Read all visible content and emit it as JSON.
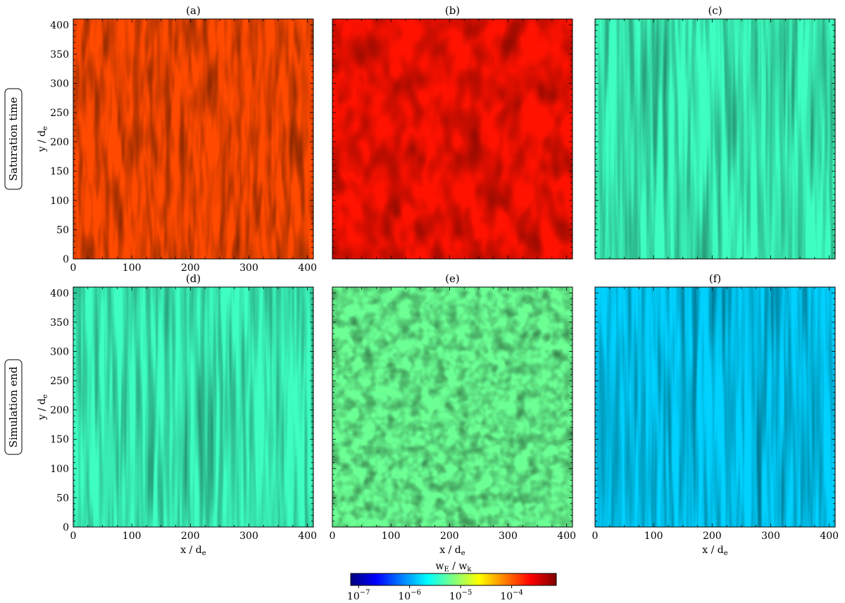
{
  "figure": {
    "row_labels": [
      "Saturation time",
      "Simulation end"
    ],
    "colorbar": {
      "label_main": "w",
      "label_sub1": "E",
      "label_sep": " / w",
      "label_sub2": "k",
      "scale": "log",
      "range": [
        7e-08,
        0.00075
      ],
      "colormap": "jet",
      "colormap_stops": [
        "#00007f",
        "#0000ff",
        "#007fff",
        "#00ffff",
        "#7fff7f",
        "#ffff00",
        "#ff7f00",
        "#ff0000",
        "#7f0000"
      ],
      "ticks": [
        {
          "base": "10",
          "exp": "−7",
          "value": 1e-07
        },
        {
          "base": "10",
          "exp": "−6",
          "value": 1e-06
        },
        {
          "base": "10",
          "exp": "−5",
          "value": 1e-05
        },
        {
          "base": "10",
          "exp": "−4",
          "value": 0.0001
        }
      ]
    }
  },
  "chart_data": [
    {
      "type": "heatmap",
      "title": "(a)",
      "row": "Saturation time",
      "xlabel": "",
      "ylabel": "y / d",
      "ylabel_sub": "e",
      "xlim": [
        0,
        410
      ],
      "ylim": [
        0,
        410
      ],
      "xticks": [
        "0",
        "100",
        "200",
        "300",
        "400"
      ],
      "yticks": [
        "0",
        "50",
        "100",
        "150",
        "200",
        "250",
        "300",
        "350",
        "400"
      ],
      "dominant_color": "#ff8c00",
      "typical_level": 0.00012
    },
    {
      "type": "heatmap",
      "title": "(b)",
      "row": "Saturation time",
      "xlabel": "",
      "ylabel": "",
      "xlim": [
        0,
        410
      ],
      "ylim": [
        0,
        410
      ],
      "xticks": [],
      "yticks": [],
      "dominant_color": "#ff3000",
      "typical_level": 0.0002
    },
    {
      "type": "heatmap",
      "title": "(c)",
      "row": "Saturation time",
      "xlabel": "",
      "ylabel": "",
      "xlim": [
        0,
        410
      ],
      "ylim": [
        0,
        410
      ],
      "xticks": [],
      "yticks": [],
      "dominant_color": "#33e8b8",
      "typical_level": 4e-06
    },
    {
      "type": "heatmap",
      "title": "(d)",
      "row": "Simulation end",
      "xlabel": "x / d",
      "xlabel_sub": "e",
      "ylabel": "y / d",
      "ylabel_sub": "e",
      "xlim": [
        0,
        410
      ],
      "ylim": [
        0,
        410
      ],
      "xticks": [
        "0",
        "100",
        "200",
        "300",
        "400"
      ],
      "yticks": [
        "0",
        "50",
        "100",
        "150",
        "200",
        "250",
        "300",
        "350",
        "400"
      ],
      "dominant_color": "#40e8b0",
      "typical_level": 4e-06
    },
    {
      "type": "heatmap",
      "title": "(e)",
      "row": "Simulation end",
      "xlabel": "x / d",
      "xlabel_sub": "e",
      "ylabel": "",
      "xlim": [
        0,
        410
      ],
      "ylim": [
        0,
        410
      ],
      "xticks": [
        "0",
        "100",
        "200",
        "300",
        "400"
      ],
      "yticks": [],
      "dominant_color": "#66e8a0",
      "typical_level": 6e-06
    },
    {
      "type": "heatmap",
      "title": "(f)",
      "row": "Simulation end",
      "xlabel": "x / d",
      "xlabel_sub": "e",
      "ylabel": "",
      "xlim": [
        0,
        410
      ],
      "ylim": [
        0,
        410
      ],
      "xticks": [
        "0",
        "100",
        "200",
        "300",
        "400"
      ],
      "yticks": [],
      "dominant_color": "#1ca8ee",
      "typical_level": 1.5e-06
    }
  ]
}
